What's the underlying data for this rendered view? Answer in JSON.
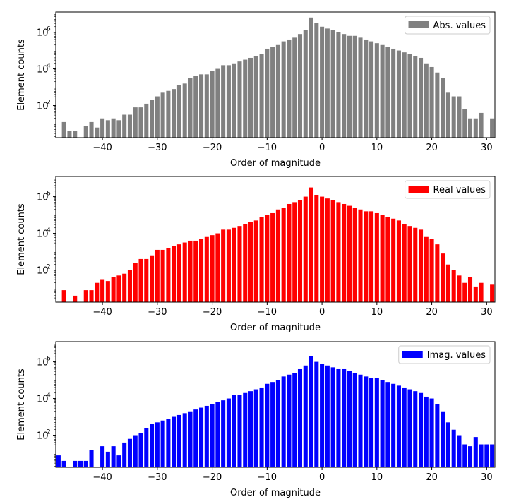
{
  "chart_data": [
    {
      "type": "bar",
      "title": "",
      "xlabel": "Order of magnitude",
      "ylabel": "Element counts",
      "yscale": "log",
      "xlim": [
        -48.5,
        31.5
      ],
      "ylim_log10": [
        0.25,
        7.1
      ],
      "xticks": [
        -40,
        -30,
        -20,
        -10,
        0,
        10,
        20,
        30
      ],
      "xtick_labels": [
        "−40",
        "−30",
        "−20",
        "−10",
        "0",
        "10",
        "20",
        "30"
      ],
      "yticks_log10": [
        2,
        4,
        6
      ],
      "ytick_labels": [
        "10",
        "10",
        "10"
      ],
      "ytick_exponents": [
        "2",
        "4",
        "6"
      ],
      "legend": {
        "label": "Abs. values",
        "color": "#808080",
        "position": "top-right"
      },
      "color": "#808080",
      "series": [
        {
          "name": "Abs. values",
          "x": [
            -47,
            -46,
            -45,
            -43,
            -42,
            -41,
            -40,
            -39,
            -38,
            -37,
            -36,
            -35,
            -34,
            -33,
            -32,
            -31,
            -30,
            -29,
            -28,
            -27,
            -26,
            -25,
            -24,
            -23,
            -22,
            -21,
            -20,
            -19,
            -18,
            -17,
            -16,
            -15,
            -14,
            -13,
            -12,
            -11,
            -10,
            -9,
            -8,
            -7,
            -6,
            -5,
            -4,
            -3,
            -2,
            -1,
            0,
            1,
            2,
            3,
            4,
            5,
            6,
            7,
            8,
            9,
            10,
            11,
            12,
            13,
            14,
            15,
            16,
            17,
            18,
            19,
            20,
            21,
            22,
            23,
            24,
            25,
            26,
            27,
            28,
            29,
            31
          ],
          "values_log10": [
            1.1,
            0.6,
            0.6,
            0.9,
            1.1,
            0.8,
            1.3,
            1.2,
            1.3,
            1.2,
            1.5,
            1.5,
            1.9,
            1.9,
            2.1,
            2.3,
            2.5,
            2.7,
            2.8,
            2.9,
            3.1,
            3.2,
            3.5,
            3.6,
            3.7,
            3.7,
            3.9,
            4.0,
            4.2,
            4.2,
            4.3,
            4.4,
            4.5,
            4.6,
            4.7,
            4.8,
            5.1,
            5.2,
            5.3,
            5.5,
            5.6,
            5.7,
            5.9,
            6.1,
            6.8,
            6.5,
            6.3,
            6.2,
            6.1,
            6.0,
            5.9,
            5.8,
            5.8,
            5.7,
            5.6,
            5.5,
            5.4,
            5.3,
            5.2,
            5.1,
            5.0,
            4.9,
            4.8,
            4.7,
            4.6,
            4.3,
            4.1,
            3.8,
            3.5,
            2.7,
            2.5,
            2.5,
            1.8,
            1.3,
            1.3,
            1.6,
            1.3
          ]
        }
      ]
    },
    {
      "type": "bar",
      "title": "",
      "xlabel": "Order of magnitude",
      "ylabel": "Element counts",
      "yscale": "log",
      "xlim": [
        -48.5,
        31.5
      ],
      "ylim_log10": [
        0.25,
        7.1
      ],
      "xticks": [
        -40,
        -30,
        -20,
        -10,
        0,
        10,
        20,
        30
      ],
      "xtick_labels": [
        "−40",
        "−30",
        "−20",
        "−10",
        "0",
        "10",
        "20",
        "30"
      ],
      "yticks_log10": [
        2,
        4,
        6
      ],
      "ytick_labels": [
        "10",
        "10",
        "10"
      ],
      "ytick_exponents": [
        "2",
        "4",
        "6"
      ],
      "legend": {
        "label": "Real values",
        "color": "#ff0000",
        "position": "top-right"
      },
      "color": "#ff0000",
      "series": [
        {
          "name": "Real values",
          "x": [
            -47,
            -45,
            -43,
            -42,
            -41,
            -40,
            -39,
            -38,
            -37,
            -36,
            -35,
            -34,
            -33,
            -32,
            -31,
            -30,
            -29,
            -28,
            -27,
            -26,
            -25,
            -24,
            -23,
            -22,
            -21,
            -20,
            -19,
            -18,
            -17,
            -16,
            -15,
            -14,
            -13,
            -12,
            -11,
            -10,
            -9,
            -8,
            -7,
            -6,
            -5,
            -4,
            -3,
            -2,
            -1,
            0,
            1,
            2,
            3,
            4,
            5,
            6,
            7,
            8,
            9,
            10,
            11,
            12,
            13,
            14,
            15,
            16,
            17,
            18,
            19,
            20,
            21,
            22,
            23,
            24,
            25,
            26,
            27,
            28,
            29,
            31
          ],
          "values_log10": [
            0.9,
            0.6,
            0.9,
            0.9,
            1.3,
            1.5,
            1.4,
            1.6,
            1.7,
            1.8,
            2.0,
            2.4,
            2.6,
            2.6,
            2.8,
            3.1,
            3.1,
            3.2,
            3.3,
            3.4,
            3.5,
            3.6,
            3.6,
            3.7,
            3.8,
            3.9,
            4.0,
            4.2,
            4.2,
            4.3,
            4.4,
            4.5,
            4.6,
            4.7,
            4.9,
            5.0,
            5.1,
            5.3,
            5.4,
            5.6,
            5.7,
            5.8,
            6.0,
            6.5,
            6.1,
            6.0,
            5.9,
            5.8,
            5.7,
            5.6,
            5.5,
            5.4,
            5.3,
            5.2,
            5.2,
            5.1,
            5.0,
            4.9,
            4.8,
            4.7,
            4.5,
            4.4,
            4.3,
            4.2,
            3.8,
            3.7,
            3.4,
            2.9,
            2.3,
            2.0,
            1.7,
            1.3,
            1.6,
            1.1,
            1.3,
            1.2
          ]
        }
      ]
    },
    {
      "type": "bar",
      "title": "",
      "xlabel": "Order of magnitude",
      "ylabel": "Element counts",
      "yscale": "log",
      "xlim": [
        -48.5,
        31.5
      ],
      "ylim_log10": [
        0.25,
        7.1
      ],
      "xticks": [
        -40,
        -30,
        -20,
        -10,
        0,
        10,
        20,
        30
      ],
      "xtick_labels": [
        "−40",
        "−30",
        "−20",
        "−10",
        "0",
        "10",
        "20",
        "30"
      ],
      "yticks_log10": [
        2,
        4,
        6
      ],
      "ytick_labels": [
        "10",
        "10",
        "10"
      ],
      "ytick_exponents": [
        "2",
        "4",
        "6"
      ],
      "legend": {
        "label": "Imag. values",
        "color": "#0000ff",
        "position": "top-right"
      },
      "color": "#0000ff",
      "series": [
        {
          "name": "Imag. values",
          "x": [
            -48,
            -47,
            -45,
            -44,
            -43,
            -42,
            -40,
            -39,
            -38,
            -37,
            -36,
            -35,
            -34,
            -33,
            -32,
            -31,
            -30,
            -29,
            -28,
            -27,
            -26,
            -25,
            -24,
            -23,
            -22,
            -21,
            -20,
            -19,
            -18,
            -17,
            -16,
            -15,
            -14,
            -13,
            -12,
            -11,
            -10,
            -9,
            -8,
            -7,
            -6,
            -5,
            -4,
            -3,
            -2,
            -1,
            0,
            1,
            2,
            3,
            4,
            5,
            6,
            7,
            8,
            9,
            10,
            11,
            12,
            13,
            14,
            15,
            16,
            17,
            18,
            19,
            20,
            21,
            22,
            23,
            24,
            25,
            26,
            27,
            28,
            29,
            30,
            31
          ],
          "values_log10": [
            0.9,
            0.6,
            0.6,
            0.6,
            0.6,
            1.2,
            1.4,
            1.1,
            1.4,
            0.9,
            1.6,
            1.8,
            2.0,
            2.1,
            2.4,
            2.6,
            2.7,
            2.8,
            2.9,
            3.0,
            3.1,
            3.2,
            3.3,
            3.4,
            3.5,
            3.6,
            3.7,
            3.8,
            3.9,
            4.0,
            4.2,
            4.2,
            4.3,
            4.4,
            4.5,
            4.6,
            4.8,
            4.9,
            5.0,
            5.2,
            5.3,
            5.4,
            5.6,
            5.8,
            6.3,
            6.0,
            5.9,
            5.8,
            5.7,
            5.6,
            5.6,
            5.5,
            5.4,
            5.3,
            5.2,
            5.1,
            5.1,
            5.0,
            4.9,
            4.8,
            4.7,
            4.6,
            4.5,
            4.4,
            4.3,
            4.1,
            4.0,
            3.7,
            3.3,
            2.7,
            2.3,
            2.0,
            1.5,
            1.4,
            1.9,
            1.5,
            1.5,
            1.5
          ]
        }
      ]
    }
  ]
}
